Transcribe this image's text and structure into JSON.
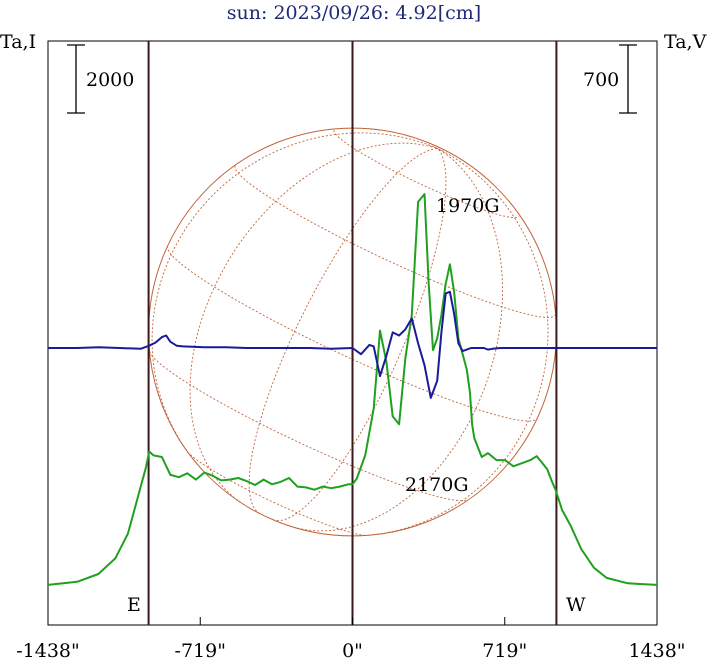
{
  "title": "sun: 2023/09/26: 4.92[cm]",
  "left_axis_label": "Ta,I",
  "right_axis_label": "Ta,V",
  "scale_left": "2000",
  "scale_right": "700",
  "east_label": "E",
  "west_label": "W",
  "x_ticks": [
    "-1438\"",
    "-719\"",
    "0\"",
    "719\"",
    "1438\""
  ],
  "x_tick_values": [
    -1438,
    -719,
    0,
    719,
    1438
  ],
  "annotations": [
    {
      "text": "1970G",
      "x": 560,
      "series": "V"
    },
    {
      "text": "2170G",
      "x": 400,
      "series": "V"
    }
  ],
  "colors": {
    "intensity": "#1fa01f",
    "polarization": "#1a1a9a",
    "disk": "#c0643a",
    "limb_lines": "#3a1a1a",
    "title": "#1e2a78"
  },
  "chart_data": {
    "type": "line",
    "title": "sun: 2023/09/26: 4.92[cm]",
    "xlabel": "",
    "xlim": [
      -1438,
      1438
    ],
    "vertical_lines": [
      -963,
      0,
      963
    ],
    "series": [
      {
        "name": "I",
        "unit_label": "Ta,I",
        "x": [
          -1438,
          -1300,
          -1200,
          -1120,
          -1060,
          -1010,
          -975,
          -960,
          -940,
          -900,
          -860,
          -820,
          -780,
          -740,
          -700,
          -660,
          -620,
          -580,
          -540,
          -500,
          -460,
          -420,
          -380,
          -340,
          -300,
          -260,
          -220,
          -180,
          -140,
          -100,
          -60,
          -20,
          0,
          20,
          60,
          100,
          130,
          160,
          190,
          220,
          250,
          280,
          310,
          340,
          360,
          380,
          400,
          420,
          440,
          460,
          480,
          500,
          520,
          540,
          555,
          565,
          575,
          590,
          610,
          640,
          680,
          720,
          760,
          800,
          840,
          870,
          900,
          920,
          940,
          960,
          990,
          1030,
          1080,
          1140,
          1200,
          1300,
          1438
        ],
        "y": [
          40,
          80,
          180,
          380,
          700,
          1200,
          1550,
          1750,
          1700,
          1680,
          1450,
          1420,
          1470,
          1390,
          1480,
          1440,
          1380,
          1390,
          1410,
          1370,
          1320,
          1390,
          1330,
          1360,
          1410,
          1300,
          1290,
          1260,
          1300,
          1280,
          1300,
          1330,
          1330,
          1400,
          1700,
          2300,
          3300,
          2900,
          2200,
          2100,
          2950,
          3500,
          4950,
          5050,
          3900,
          3050,
          3200,
          3500,
          3900,
          4150,
          3800,
          3200,
          3000,
          2800,
          2500,
          2100,
          1920,
          1820,
          1680,
          1730,
          1640,
          1640,
          1560,
          1600,
          1640,
          1690,
          1590,
          1520,
          1380,
          1250,
          1000,
          800,
          500,
          260,
          130,
          60,
          40
        ]
      },
      {
        "name": "V",
        "unit_label": "Ta,V",
        "x": [
          -1438,
          -1300,
          -1200,
          -1100,
          -1000,
          -960,
          -930,
          -900,
          -880,
          -860,
          -830,
          -800,
          -700,
          -600,
          -500,
          -400,
          -300,
          -200,
          -100,
          0,
          40,
          80,
          100,
          130,
          160,
          190,
          220,
          250,
          280,
          310,
          340,
          370,
          400,
          420,
          440,
          460,
          480,
          500,
          520,
          540,
          560,
          580,
          600,
          620,
          640,
          660,
          700,
          800,
          900,
          1000,
          1100,
          1200,
          1300,
          1438
        ],
        "y": [
          0,
          0,
          5,
          0,
          -5,
          15,
          35,
          70,
          80,
          40,
          15,
          10,
          5,
          5,
          0,
          0,
          0,
          0,
          -5,
          0,
          -40,
          20,
          10,
          -180,
          -50,
          100,
          80,
          120,
          190,
          30,
          -110,
          -320,
          -210,
          100,
          350,
          360,
          220,
          30,
          -20,
          -10,
          0,
          0,
          0,
          0,
          -10,
          -5,
          0,
          0,
          0,
          0,
          0,
          0,
          0,
          0
        ]
      }
    ]
  }
}
